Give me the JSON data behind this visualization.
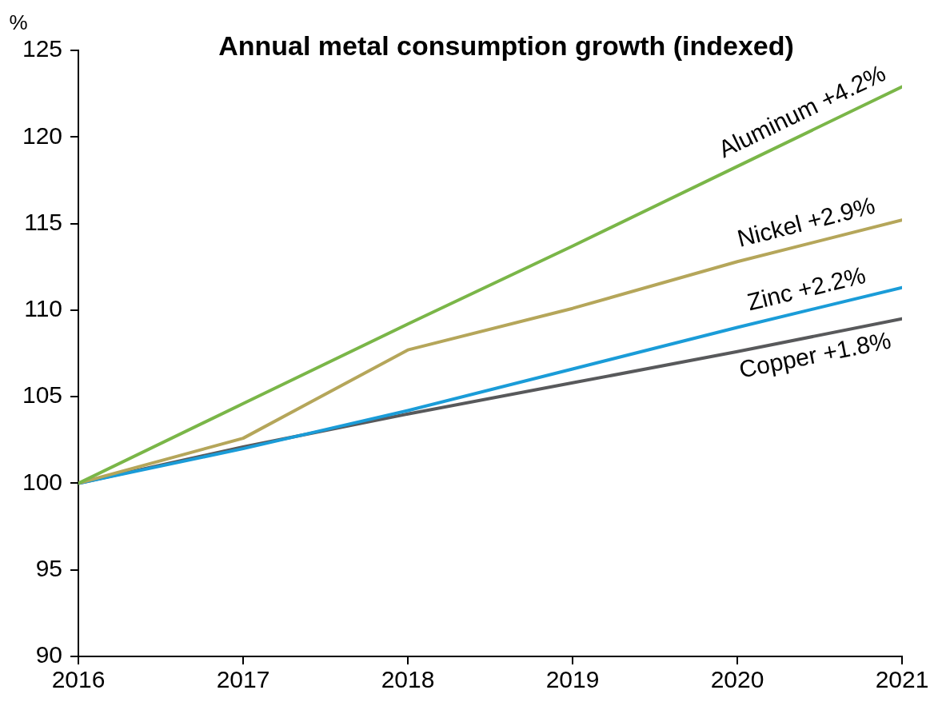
{
  "chart_data": {
    "type": "line",
    "title": "Annual metal consumption growth (indexed)",
    "ylabel": "%",
    "x": [
      2016,
      2017,
      2018,
      2019,
      2020,
      2021
    ],
    "xlim": [
      2016,
      2021
    ],
    "xticks": [
      2016,
      2017,
      2018,
      2019,
      2020,
      2021
    ],
    "ylim": [
      90,
      125
    ],
    "yticks": [
      90,
      95,
      100,
      105,
      110,
      115,
      120,
      125
    ],
    "grid": false,
    "legend": false,
    "marker": "none",
    "line_style": "solid",
    "series": [
      {
        "name": "Aluminum +4.2%",
        "color": "#7ab648",
        "values": [
          100,
          104.6,
          109.2,
          113.7,
          118.3,
          122.9
        ]
      },
      {
        "name": "Nickel +2.9%",
        "color": "#b5a65a",
        "values": [
          100,
          102.6,
          107.7,
          110.1,
          112.8,
          115.2
        ]
      },
      {
        "name": "Zinc +2.2%",
        "color": "#1a9cd8",
        "values": [
          100,
          102.0,
          104.2,
          106.6,
          109.0,
          111.3
        ]
      },
      {
        "name": "Copper +1.8%",
        "color": "#58595b",
        "values": [
          100,
          102.1,
          104.0,
          105.8,
          107.6,
          109.5
        ]
      }
    ]
  }
}
